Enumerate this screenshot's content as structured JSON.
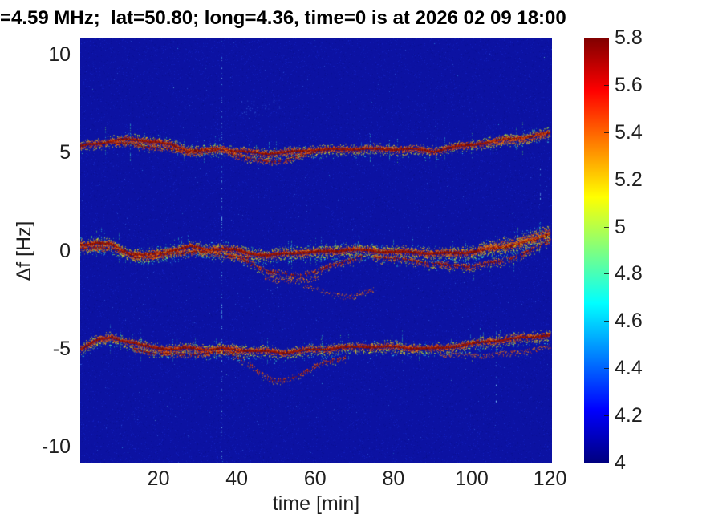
{
  "figure": {
    "title": "=4.59 MHz;  lat=50.80; long=4.36, time=0 is at 2026 02 09 18:00"
  },
  "axes": {
    "xlabel": "time [min]",
    "ylabel": "Δf [Hz]",
    "xlim": [
      0,
      120.5
    ],
    "ylim": [
      -10.85,
      10.85
    ],
    "xticks": [
      {
        "value": 20,
        "label": "20"
      },
      {
        "value": 40,
        "label": "40"
      },
      {
        "value": 60,
        "label": "60"
      },
      {
        "value": 80,
        "label": "80"
      },
      {
        "value": 100,
        "label": "100"
      },
      {
        "value": 120,
        "label": "120"
      }
    ],
    "yticks": [
      {
        "value": 10,
        "label": "10"
      },
      {
        "value": 5,
        "label": "5"
      },
      {
        "value": 0,
        "label": "0"
      },
      {
        "value": -5,
        "label": "-5"
      },
      {
        "value": -10,
        "label": "-10"
      }
    ]
  },
  "colorbar": {
    "min": 4,
    "max": 5.8,
    "colormap": "jet",
    "ticks": [
      {
        "value": 4,
        "label": "4"
      },
      {
        "value": 4.2,
        "label": "4.2"
      },
      {
        "value": 4.4,
        "label": "4.4"
      },
      {
        "value": 4.6,
        "label": "4.6"
      },
      {
        "value": 4.8,
        "label": "4.8"
      },
      {
        "value": 5,
        "label": "5"
      },
      {
        "value": 5.2,
        "label": "5.2"
      },
      {
        "value": 5.4,
        "label": "5.4"
      },
      {
        "value": 5.6,
        "label": "5.6"
      },
      {
        "value": 5.8,
        "label": "5.8"
      }
    ]
  },
  "chart_data": {
    "type": "heatmap",
    "title": "=4.59 MHz;  lat=50.80; long=4.36, time=0 is at 2026 02 09 18:00",
    "xlabel": "time [min]",
    "ylabel": "Δf [Hz]",
    "xlim": [
      0,
      120.5
    ],
    "ylim": [
      -10.85,
      10.85
    ],
    "clim": [
      4,
      5.8
    ],
    "colormap": "jet",
    "background_level": 4.05,
    "description": "Doppler spectrogram: three narrow high-intensity traces near +5 Hz, 0 Hz and -5 Hz drifting over 0-120 min on a dark-blue low-power background",
    "palette": {
      "background": "#0c12a2",
      "core_red": [
        "#7d0c00",
        "#911203",
        "#a11a04"
      ],
      "fringe_orange": [
        "#e05a10",
        "#d84a0c",
        "#c23408"
      ],
      "near": [
        "#cc3a0a",
        "#e0600e",
        "#ef8b12"
      ],
      "mid": [
        "#f0b414",
        "#e8d820",
        "#a8d82a",
        "#c8e020"
      ],
      "far": [
        "#58d060",
        "#30c8a8",
        "#28c0d0",
        "#40d8e0"
      ],
      "halo": [
        "#2e8ee0",
        "#2462d2",
        "#38b0e8",
        "#1e4fc0"
      ],
      "artifact": [
        "#6fd4f2",
        "#49a8e4",
        "#8adfff",
        "#2f7ad6"
      ]
    },
    "traces": [
      {
        "name": "upper-trace-main",
        "core": 2.6,
        "coreGap": 0,
        "speckles": 5,
        "spreadUp": 6,
        "spreadDown": 8,
        "spikeProb": 0.06,
        "points": [
          [
            0,
            5.3
          ],
          [
            3,
            5.45
          ],
          [
            7,
            5.55
          ],
          [
            11,
            5.65
          ],
          [
            15,
            5.65
          ],
          [
            19,
            5.55
          ],
          [
            23,
            5.4
          ],
          [
            27,
            5.15
          ],
          [
            30,
            5.1
          ],
          [
            33,
            5.15
          ],
          [
            36,
            5.2
          ],
          [
            39,
            5.1
          ],
          [
            43,
            5.0
          ],
          [
            47,
            4.95
          ],
          [
            51,
            5.0
          ],
          [
            55,
            5.05
          ],
          [
            60,
            5.15
          ],
          [
            66,
            5.15
          ],
          [
            72,
            5.2
          ],
          [
            78,
            5.15
          ],
          [
            84,
            5.2
          ],
          [
            90,
            5.05
          ],
          [
            94,
            5.25
          ],
          [
            100,
            5.4
          ],
          [
            106,
            5.6
          ],
          [
            112,
            5.75
          ],
          [
            116,
            5.85
          ],
          [
            120,
            6.0
          ]
        ]
      },
      {
        "name": "upper-trace-second",
        "core": 1.6,
        "coreGap": 0.3,
        "speckles": 2,
        "spreadUp": 4,
        "spreadDown": 5,
        "spikeProb": 0.02,
        "points": [
          [
            8,
            5.5
          ],
          [
            13,
            5.42
          ],
          [
            18,
            5.28
          ],
          [
            23,
            5.15
          ],
          [
            28,
            5.02
          ],
          [
            31,
            5.0
          ],
          [
            34,
            5.08
          ],
          [
            37,
            5.15
          ]
        ]
      },
      {
        "name": "upper-trace-dip-branch",
        "core": 1.4,
        "coreGap": 0.45,
        "speckles": 2,
        "spreadUp": 4,
        "spreadDown": 5,
        "spikeProb": 0,
        "points": [
          [
            37,
            5.05
          ],
          [
            41,
            4.8
          ],
          [
            45,
            4.6
          ],
          [
            48,
            4.52
          ],
          [
            52,
            4.62
          ],
          [
            56,
            4.82
          ],
          [
            60,
            4.98
          ]
        ]
      },
      {
        "name": "upper-trace-right-cloud",
        "core": 0,
        "coreGap": 0,
        "speckles": 4,
        "spreadUp": 7,
        "spreadDown": 7,
        "spikeProb": 0,
        "points": [
          [
            104,
            5.45
          ],
          [
            112,
            5.65
          ],
          [
            120,
            5.95
          ]
        ]
      },
      {
        "name": "center-trace-main",
        "core": 3,
        "coreGap": 0,
        "speckles": 7,
        "spreadUp": 7,
        "spreadDown": 11,
        "spikeProb": 0.07,
        "points": [
          [
            0,
            0.3
          ],
          [
            4,
            0.4
          ],
          [
            8,
            0.3
          ],
          [
            12,
            -0.1
          ],
          [
            16,
            -0.25
          ],
          [
            20,
            -0.15
          ],
          [
            24,
            0.05
          ],
          [
            28,
            0.2
          ],
          [
            32,
            0.05
          ],
          [
            36,
            0.1
          ],
          [
            40,
            0.0
          ],
          [
            44,
            -0.15
          ],
          [
            48,
            -0.25
          ],
          [
            52,
            -0.15
          ],
          [
            56,
            -0.1
          ],
          [
            62,
            -0.05
          ],
          [
            68,
            0.05
          ],
          [
            74,
            0.0
          ],
          [
            80,
            -0.05
          ],
          [
            86,
            -0.1
          ],
          [
            92,
            -0.15
          ],
          [
            97,
            -0.1
          ],
          [
            102,
            0.0
          ],
          [
            107,
            0.15
          ],
          [
            112,
            0.35
          ],
          [
            116,
            0.55
          ],
          [
            120,
            0.9
          ]
        ]
      },
      {
        "name": "center-trace-second",
        "core": 1.8,
        "coreGap": 0.25,
        "speckles": 3,
        "spreadUp": 4,
        "spreadDown": 6,
        "spikeProb": 0.02,
        "points": [
          [
            0,
            0.08
          ],
          [
            5,
            0.2
          ],
          [
            10,
            -0.02
          ],
          [
            14,
            -0.35
          ],
          [
            19,
            -0.32
          ],
          [
            24,
            -0.15
          ],
          [
            29,
            -0.05
          ],
          [
            34,
            -0.12
          ],
          [
            39,
            -0.28
          ],
          [
            43,
            -0.42
          ]
        ]
      },
      {
        "name": "center-trace-dip-branch",
        "core": 1.5,
        "coreGap": 0.4,
        "speckles": 2,
        "spreadUp": 4,
        "spreadDown": 6,
        "spikeProb": 0,
        "points": [
          [
            40,
            -0.32
          ],
          [
            44,
            -0.72
          ],
          [
            48,
            -1.05
          ],
          [
            52,
            -1.22
          ],
          [
            56,
            -1.28
          ],
          [
            60,
            -1.08
          ],
          [
            64,
            -0.78
          ],
          [
            68,
            -0.5
          ],
          [
            72,
            -0.3
          ]
        ]
      },
      {
        "name": "center-trace-deep-specks",
        "core": 0,
        "coreGap": 0,
        "speckles": 2,
        "spreadUp": 3,
        "spreadDown": 4,
        "spikeProb": 0,
        "points": [
          [
            47,
            -1.35
          ],
          [
            52,
            -1.5
          ],
          [
            57,
            -1.52
          ],
          [
            61,
            -1.35
          ]
        ]
      },
      {
        "name": "center-trace-tail-specks",
        "core": 0,
        "coreGap": 0,
        "speckles": 1.5,
        "spreadUp": 3,
        "spreadDown": 4,
        "spikeProb": 0,
        "points": [
          [
            57,
            -1.75
          ],
          [
            63,
            -2.15
          ],
          [
            69,
            -2.35
          ],
          [
            75,
            -1.95
          ]
        ]
      },
      {
        "name": "center-trace-lower-right",
        "core": 1.6,
        "coreGap": 0.3,
        "speckles": 3,
        "spreadUp": 4,
        "spreadDown": 7,
        "spikeProb": 0.02,
        "points": [
          [
            75,
            -0.3
          ],
          [
            82,
            -0.45
          ],
          [
            88,
            -0.6
          ],
          [
            94,
            -0.75
          ],
          [
            100,
            -0.8
          ],
          [
            107,
            -0.55
          ],
          [
            113,
            -0.2
          ],
          [
            120,
            0.55
          ]
        ]
      },
      {
        "name": "center-trace-right-cloud",
        "core": 0,
        "coreGap": 0,
        "speckles": 5,
        "spreadUp": 8,
        "spreadDown": 8,
        "spikeProb": 0,
        "points": [
          [
            102,
            0.1
          ],
          [
            110,
            0.45
          ],
          [
            116,
            0.7
          ],
          [
            120,
            1.05
          ]
        ]
      },
      {
        "name": "lower-trace-main",
        "core": 2.6,
        "coreGap": 0,
        "speckles": 6,
        "spreadUp": 6,
        "spreadDown": 9,
        "spikeProb": 0.06,
        "points": [
          [
            0,
            -5.0
          ],
          [
            4,
            -4.6
          ],
          [
            8,
            -4.4
          ],
          [
            12,
            -4.65
          ],
          [
            16,
            -4.85
          ],
          [
            20,
            -4.95
          ],
          [
            24,
            -5.05
          ],
          [
            28,
            -4.95
          ],
          [
            32,
            -5.05
          ],
          [
            36,
            -5.0
          ],
          [
            40,
            -5.05
          ],
          [
            44,
            -5.1
          ],
          [
            48,
            -5.15
          ],
          [
            52,
            -5.2
          ],
          [
            56,
            -5.1
          ],
          [
            60,
            -5.05
          ],
          [
            66,
            -4.95
          ],
          [
            72,
            -4.9
          ],
          [
            78,
            -4.9
          ],
          [
            84,
            -4.95
          ],
          [
            90,
            -5.0
          ],
          [
            95,
            -4.9
          ],
          [
            100,
            -4.75
          ],
          [
            105,
            -4.6
          ],
          [
            110,
            -4.5
          ],
          [
            115,
            -4.4
          ],
          [
            120,
            -4.3
          ]
        ]
      },
      {
        "name": "lower-trace-second",
        "core": 1.5,
        "coreGap": 0.35,
        "speckles": 2,
        "spreadUp": 4,
        "spreadDown": 5,
        "spikeProb": 0,
        "points": [
          [
            13,
            -5.02
          ],
          [
            19,
            -5.22
          ],
          [
            25,
            -5.3
          ],
          [
            31,
            -5.26
          ],
          [
            37,
            -5.18
          ],
          [
            41,
            -5.12
          ]
        ]
      },
      {
        "name": "lower-trace-deep-branch",
        "core": 1.2,
        "coreGap": 0.55,
        "speckles": 1.8,
        "spreadUp": 3,
        "spreadDown": 5,
        "spikeProb": 0,
        "points": [
          [
            38,
            -5.3
          ],
          [
            42,
            -5.62
          ],
          [
            46,
            -6.2
          ],
          [
            49,
            -6.65
          ],
          [
            52,
            -6.6
          ],
          [
            56,
            -6.3
          ],
          [
            60,
            -5.92
          ],
          [
            64,
            -5.6
          ],
          [
            68,
            -5.42
          ]
        ]
      },
      {
        "name": "lower-trace-right-skirt",
        "core": 0,
        "coreGap": 0,
        "speckles": 2,
        "spreadUp": 3,
        "spreadDown": 5,
        "spikeProb": 0,
        "points": [
          [
            92,
            -5.25
          ],
          [
            100,
            -5.35
          ],
          [
            108,
            -5.25
          ],
          [
            115,
            -5.05
          ],
          [
            120,
            -4.9
          ]
        ]
      }
    ],
    "artifacts": [
      {
        "type": "dotted-vertical-line",
        "t": 36.2,
        "fRange": [
          -10.85,
          10.85
        ],
        "strength": 0.8
      },
      {
        "type": "dotted-vertical-line",
        "t": 106.3,
        "fRange": [
          -8.6,
          -3.4
        ],
        "strength": 0.35
      },
      {
        "type": "dotted-vertical-line",
        "t": 117.6,
        "fRange": [
          1.4,
          4.4
        ],
        "strength": 0.35
      },
      {
        "type": "speckle-patch",
        "tRange": [
          41,
          51
        ],
        "fRange": [
          6.9,
          7.7
        ],
        "count": 35
      }
    ]
  }
}
